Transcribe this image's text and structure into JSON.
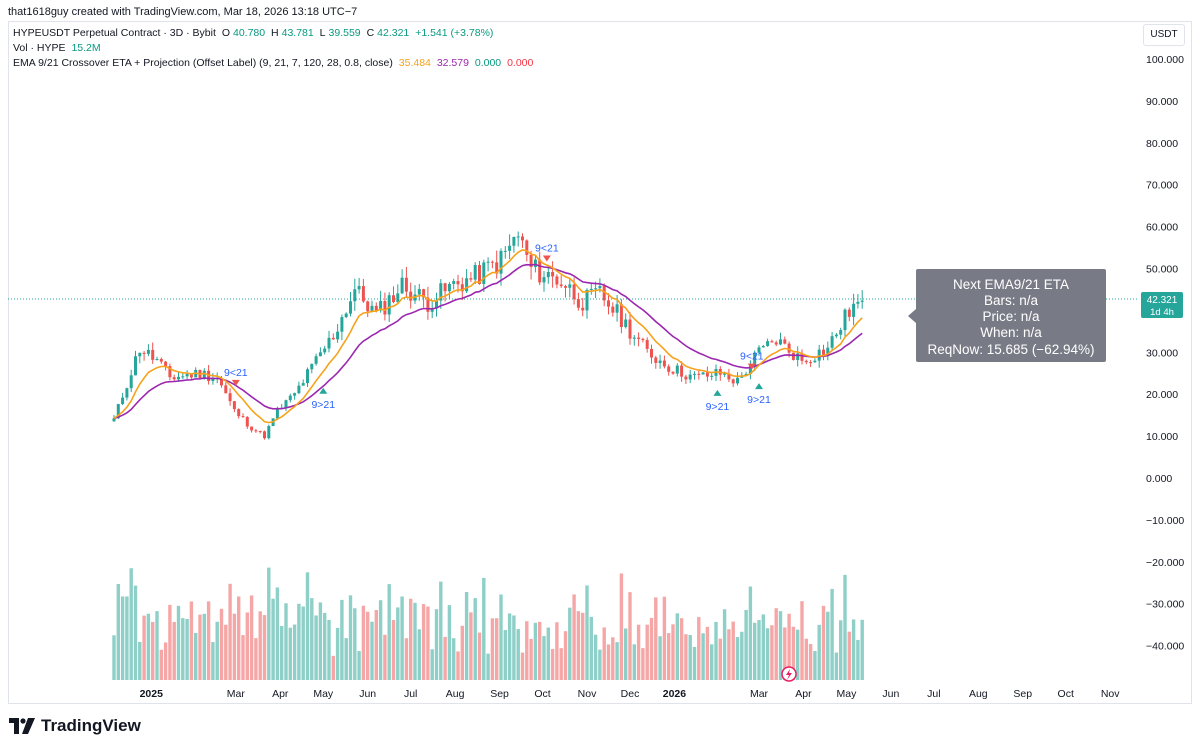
{
  "header": {
    "attribution": "that1618guy created with TradingView.com, Mar 18, 2026 13:18 UTC−7"
  },
  "legend": {
    "symbol": "HYPEUSDT Perpetual Contract · 3D · Bybit",
    "o_label": "O",
    "o_value": "40.780",
    "h_label": "H",
    "h_value": "43.781",
    "l_label": "L",
    "l_value": "39.559",
    "c_label": "C",
    "c_value": "42.321",
    "change": "+1.541 (+3.78%)",
    "vol_label": "Vol · HYPE",
    "vol_value": "15.2M",
    "ema_label": "EMA 9/21 Crossover ETA + Projection (Offset Label) (9, 21, 7, 120, 28, 0.8, close)",
    "ema_v1": "35.484",
    "ema_v2": "32.579",
    "ema_v3": "0.000",
    "ema_v4": "0.000"
  },
  "currency_button": "USDT",
  "price_label": {
    "value": "42.321",
    "countdown": "1d 4h"
  },
  "info_box": {
    "title": "Next EMA9/21 ETA",
    "bars": "Bars: n/a",
    "price": "Price: n/a",
    "when": "When: n/a",
    "reqnow": "ReqNow: 15.685 (−62.94%)"
  },
  "footer": {
    "brand": "TradingView"
  },
  "colors": {
    "up": "#26a69a",
    "down": "#ef5350",
    "vol_up": "#8ecfc7",
    "vol_down": "#f4a7a6",
    "ema9": "#f7a21b",
    "ema21": "#9c27b0",
    "marker_text": "#2962ff"
  },
  "chart_data": {
    "type": "candlestick",
    "title": "HYPEUSDT Perpetual Contract · 3D · Bybit",
    "y_ticks": [
      "100.000",
      "90.000",
      "80.000",
      "70.000",
      "60.000",
      "50.000",
      "40.000",
      "30.000",
      "20.000",
      "10.000",
      "0.000",
      "−10.000",
      "−20.000",
      "−30.000",
      "−40.000"
    ],
    "y_tick_values": [
      100,
      90,
      80,
      70,
      60,
      50,
      40,
      30,
      20,
      10,
      0,
      -10,
      -20,
      -30,
      -40
    ],
    "ylim": [
      -50,
      105
    ],
    "x_ticks": [
      "2025",
      "Mar",
      "Apr",
      "May",
      "Jun",
      "Jul",
      "Aug",
      "Sep",
      "Oct",
      "Nov",
      "Dec",
      "2026",
      "Mar",
      "Apr",
      "May",
      "Jun",
      "Jul",
      "Aug",
      "Sep",
      "Oct",
      "Nov"
    ],
    "x_tick_dates": [
      "2025-01-01",
      "2025-03-01",
      "2025-04-01",
      "2025-05-01",
      "2025-06-01",
      "2025-07-01",
      "2025-08-01",
      "2025-09-01",
      "2025-10-01",
      "2025-11-01",
      "2025-12-01",
      "2026-01-01",
      "2026-03-01",
      "2026-04-01",
      "2026-05-01",
      "2026-06-01",
      "2026-07-01",
      "2026-08-01",
      "2026-09-01",
      "2026-10-01",
      "2026-11-01"
    ],
    "bold_ticks": [
      "2025",
      "2026"
    ],
    "x_start_date": "2024-12-06",
    "bar_days": 3,
    "last_price": 42.321,
    "series": [
      {
        "name": "HYPEUSDT",
        "control_points": [
          [
            0,
            14
          ],
          [
            6,
            31
          ],
          [
            10,
            28
          ],
          [
            13,
            24
          ],
          [
            20,
            25
          ],
          [
            24,
            24
          ],
          [
            28,
            16
          ],
          [
            32,
            12
          ],
          [
            35,
            10
          ],
          [
            38,
            16
          ],
          [
            42,
            20
          ],
          [
            47,
            28
          ],
          [
            51,
            34
          ],
          [
            56,
            45
          ],
          [
            61,
            39
          ],
          [
            67,
            46
          ],
          [
            73,
            42
          ],
          [
            79,
            46
          ],
          [
            84,
            48
          ],
          [
            90,
            52
          ],
          [
            94,
            58
          ],
          [
            97,
            50
          ],
          [
            104,
            47
          ],
          [
            109,
            42
          ],
          [
            113,
            44
          ],
          [
            118,
            38
          ],
          [
            124,
            30
          ],
          [
            130,
            26
          ],
          [
            135,
            24
          ],
          [
            141,
            25
          ],
          [
            145,
            23
          ],
          [
            150,
            30
          ],
          [
            154,
            33
          ],
          [
            160,
            28
          ],
          [
            166,
            31
          ],
          [
            171,
            40
          ],
          [
            174,
            42.321
          ]
        ]
      },
      {
        "name": "Vol",
        "note": "volume bars below price, coloured by candle direction"
      }
    ],
    "ema": [
      {
        "name": "EMA 9",
        "period": 9
      },
      {
        "name": "EMA 21",
        "period": 21
      }
    ],
    "signals": [
      {
        "label": "9<21",
        "type": "down",
        "date": "2025-03-01"
      },
      {
        "label": "9>21",
        "type": "up",
        "date": "2025-05-01"
      },
      {
        "label": "9<21",
        "type": "down",
        "date": "2025-10-04"
      },
      {
        "label": "9>21",
        "type": "up",
        "date": "2026-01-31"
      },
      {
        "label": "9<21",
        "type": "down",
        "date": "2026-02-24"
      },
      {
        "label": "9>21",
        "type": "up",
        "date": "2026-03-01"
      }
    ]
  }
}
